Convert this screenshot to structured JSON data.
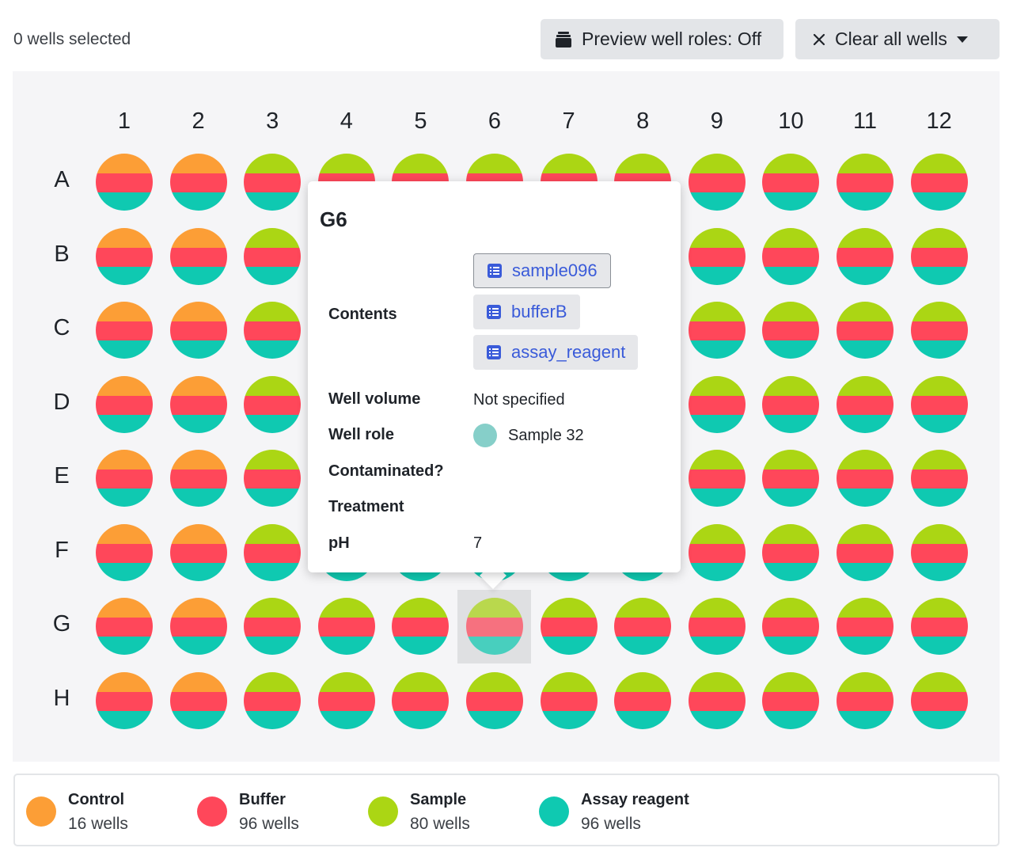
{
  "header": {
    "selection_count": "0 wells selected",
    "preview_button": "Preview well roles: Off",
    "preview_icon": "inventory-box-icon",
    "clear_button": "Clear all wells",
    "clear_icon": "close-icon",
    "clear_caret_icon": "caret-down-icon"
  },
  "plate": {
    "columns": [
      "1",
      "2",
      "3",
      "4",
      "5",
      "6",
      "7",
      "8",
      "9",
      "10",
      "11",
      "12"
    ],
    "rows": [
      "A",
      "B",
      "C",
      "D",
      "E",
      "F",
      "G",
      "H"
    ],
    "control_columns": [
      "1",
      "2"
    ],
    "selected_well": "G6"
  },
  "colors": {
    "control": "#fc9e36",
    "buffer": "#ff475a",
    "sample": "#abd614",
    "assay_reagent": "#0fc9b1",
    "role_sample": "#86cfc9",
    "link": "#3a5bd9"
  },
  "popover": {
    "title": "G6",
    "contents_label": "Contents",
    "contents": [
      "sample096",
      "bufferB",
      "assay_reagent"
    ],
    "chip_icon": "list-icon",
    "well_volume_label": "Well volume",
    "well_volume_value": "Not specified",
    "well_role_label": "Well role",
    "well_role_value": "Sample 32",
    "contaminated_label": "Contaminated?",
    "treatment_label": "Treatment",
    "ph_label": "pH",
    "ph_value": "7"
  },
  "legend": [
    {
      "name": "Control",
      "count": "16 wells",
      "color": "#fc9e36"
    },
    {
      "name": "Buffer",
      "count": "96 wells",
      "color": "#ff475a"
    },
    {
      "name": "Sample",
      "count": "80 wells",
      "color": "#abd614"
    },
    {
      "name": "Assay reagent",
      "count": "96 wells",
      "color": "#0fc9b1"
    }
  ]
}
